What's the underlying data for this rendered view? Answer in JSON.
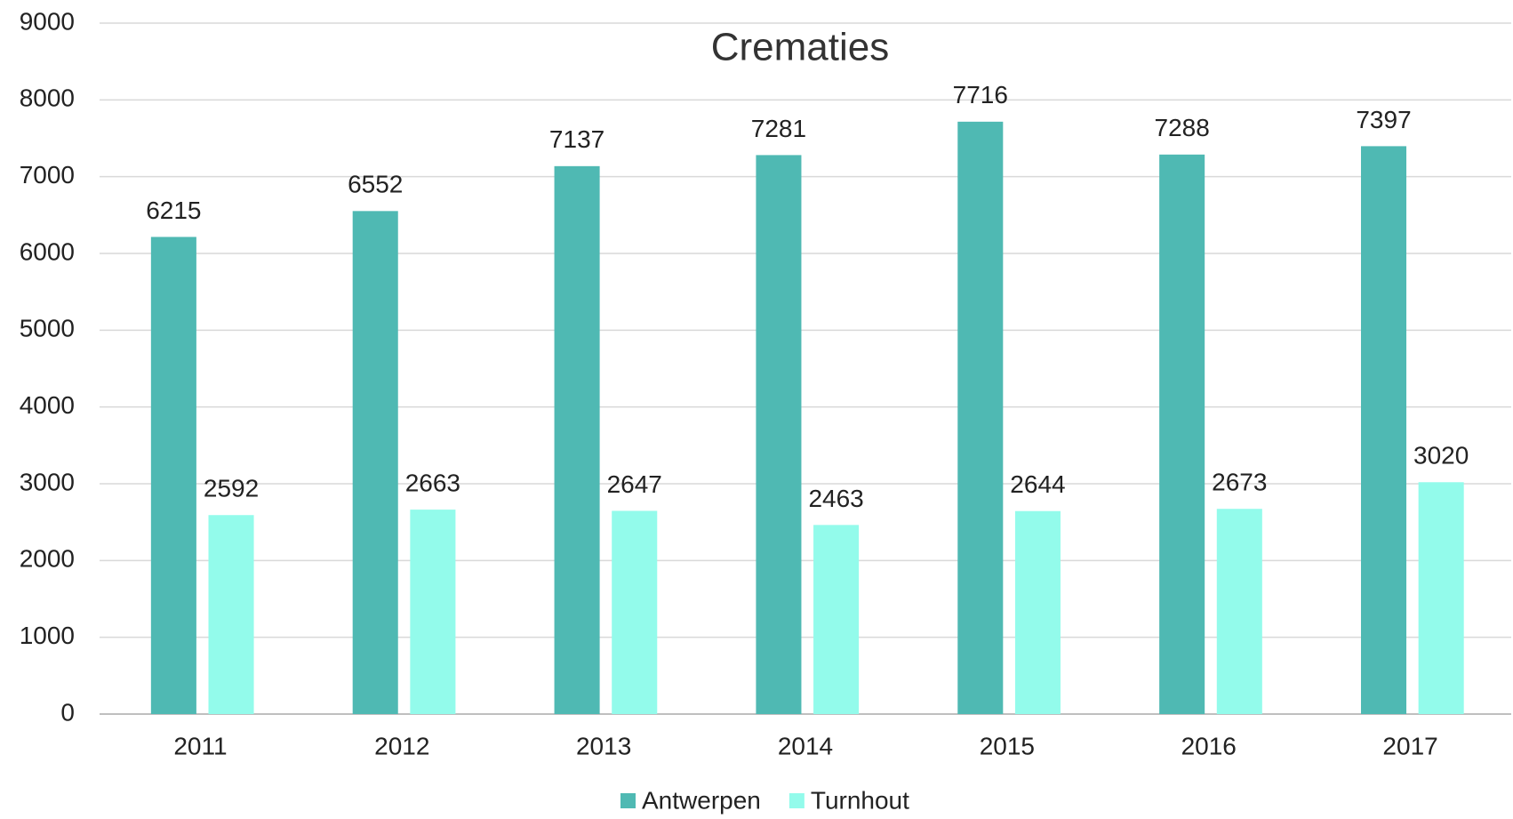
{
  "chart_data": {
    "type": "bar",
    "title": "Crematies",
    "categories": [
      "2011",
      "2012",
      "2013",
      "2014",
      "2015",
      "2016",
      "2017"
    ],
    "series": [
      {
        "name": "Antwerpen",
        "color": "#4fb9b3",
        "values": [
          6215,
          6552,
          7137,
          7281,
          7716,
          7288,
          7397
        ]
      },
      {
        "name": "Turnhout",
        "color": "#93fbeb",
        "values": [
          2592,
          2663,
          2647,
          2463,
          2644,
          2673,
          3020
        ]
      }
    ],
    "ylim": [
      0,
      9000
    ],
    "yticks": [
      0,
      1000,
      2000,
      3000,
      4000,
      5000,
      6000,
      7000,
      8000,
      9000
    ],
    "grid": true,
    "legend": "bottom"
  }
}
